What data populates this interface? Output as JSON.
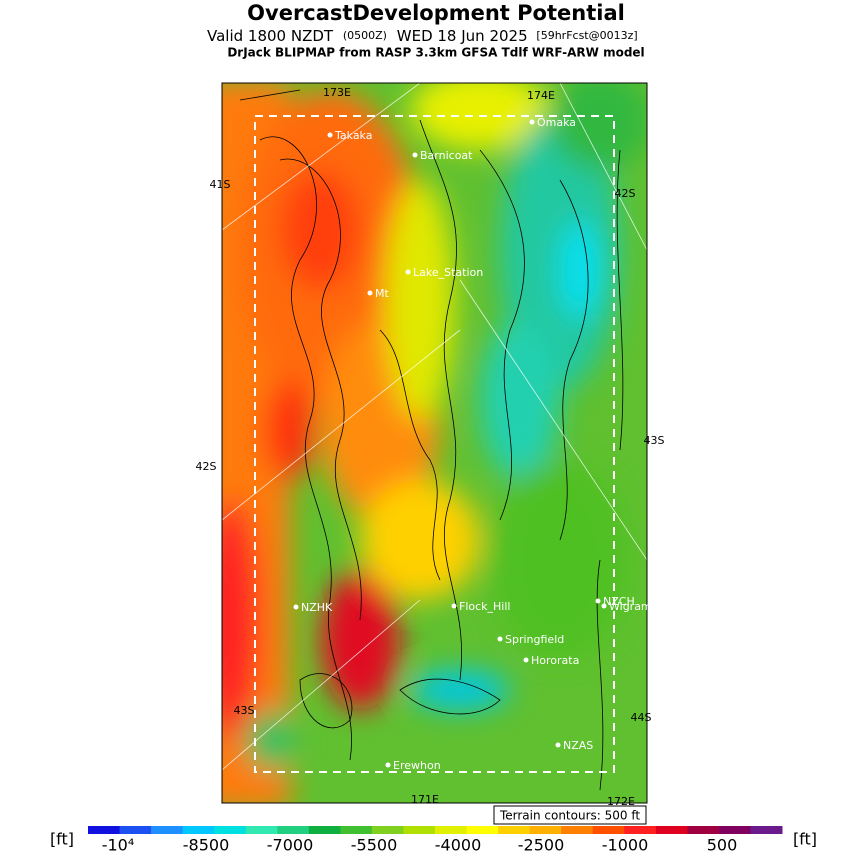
{
  "header": {
    "title": "OvercastDevelopment Potential",
    "valid": "Valid 1800 NZDT",
    "utc": "(0500Z)",
    "date": "WED 18 Jun 2025",
    "forecast": "[59hrFcst@0013z]",
    "subtitle": "DrJack BLIPMAP from RASP 3.3km GFSA Tdlf WRF-ARW model"
  },
  "map": {
    "places": [
      {
        "label": "Takaka"
      },
      {
        "label": "Barnicoat"
      },
      {
        "label": "Omaka"
      },
      {
        "label": "Lake_Station"
      },
      {
        "label": "Mt"
      },
      {
        "label": "NZHK"
      },
      {
        "label": "Flock_Hill"
      },
      {
        "label": "NZCH"
      },
      {
        "label": "Wigram"
      },
      {
        "label": "Springfield"
      },
      {
        "label": "Hororata"
      },
      {
        "label": "NZAS"
      },
      {
        "label": "Erewhon"
      }
    ],
    "grid_labels": [
      "173E",
      "174E",
      "41S",
      "42S",
      "42S",
      "43S",
      "43S",
      "44S",
      "171E",
      "172E"
    ],
    "terrain_note": "Terrain contours: 500 ft"
  },
  "legend": {
    "unit_left": "[ft]",
    "unit_right": "[ft]",
    "labels": [
      "-10⁴",
      "-8500",
      "-7000",
      "-5500",
      "-4000",
      "-2500",
      "-1000",
      "500"
    ]
  }
}
